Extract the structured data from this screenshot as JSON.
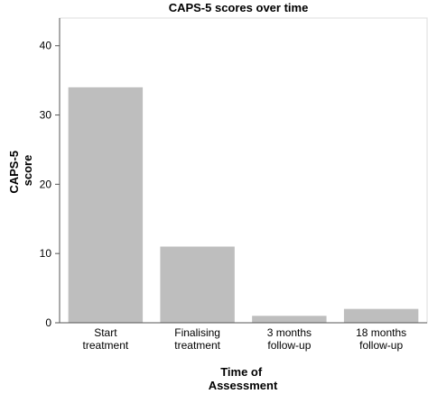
{
  "chart_data": {
    "type": "bar",
    "title": "CAPS-5 scores over time",
    "xlabel": [
      "Time of",
      "Assessment"
    ],
    "ylabel": [
      "CAPS-5",
      "score"
    ],
    "categories": [
      [
        "Start",
        "treatment"
      ],
      [
        "Finalising",
        "treatment"
      ],
      [
        "3 months",
        "follow-up"
      ],
      [
        "18 months",
        "follow-up"
      ]
    ],
    "values": [
      34,
      11,
      1,
      2
    ],
    "ylim": [
      0,
      44
    ],
    "yticks": [
      0,
      10,
      20,
      30,
      40
    ],
    "grid": false,
    "legend": "none",
    "colors": {
      "bar": "#bebebe",
      "axis": "#555555",
      "frame": "#dddddd",
      "text": "#000000"
    }
  }
}
